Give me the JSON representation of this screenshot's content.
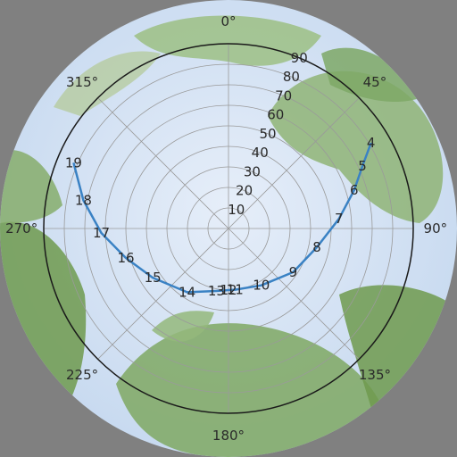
{
  "colors": {
    "background": "#808080",
    "sky": "#cfe0f5",
    "foliage_light": "#a9c88f",
    "foliage_dark": "#6f9a4e",
    "grid": "#9a9a9a",
    "horizon_ring": "#1a1a1a",
    "sun_path": "#3a82c4",
    "label_text": "#2a2a2a"
  },
  "chart_data": {
    "type": "polar-sunpath",
    "background_image": "hemispherical fisheye photo of tree canopy",
    "azimuth_labels": [
      {
        "azimuth": 0,
        "text": "0°"
      },
      {
        "azimuth": 45,
        "text": "45°"
      },
      {
        "azimuth": 90,
        "text": "90°"
      },
      {
        "azimuth": 135,
        "text": "135°"
      },
      {
        "azimuth": 180,
        "text": "180°"
      },
      {
        "azimuth": 225,
        "text": "225°"
      },
      {
        "azimuth": 270,
        "text": "270°"
      },
      {
        "azimuth": 315,
        "text": "315°"
      }
    ],
    "altitude_rings": [
      10,
      20,
      30,
      40,
      50,
      60,
      70,
      80,
      90
    ],
    "altitude_labels": [
      {
        "value": 10,
        "text": "10"
      },
      {
        "value": 20,
        "text": "20"
      },
      {
        "value": 30,
        "text": "30"
      },
      {
        "value": 40,
        "text": "40"
      },
      {
        "value": 50,
        "text": "50"
      },
      {
        "value": 60,
        "text": "60"
      },
      {
        "value": 70,
        "text": "70"
      },
      {
        "value": 80,
        "text": "80"
      },
      {
        "value": 90,
        "text": "90"
      }
    ],
    "grid": true,
    "sun_path": {
      "hours": [
        {
          "hour": "4",
          "azimuth": 59,
          "zenith": 81
        },
        {
          "hour": "5",
          "azimuth": 65,
          "zenith": 72
        },
        {
          "hour": "6",
          "azimuth": 73,
          "zenith": 64
        },
        {
          "hour": "7",
          "azimuth": 85,
          "zenith": 54
        },
        {
          "hour": "8",
          "azimuth": 102,
          "zenith": 44
        },
        {
          "hour": "9",
          "azimuth": 124,
          "zenith": 38
        },
        {
          "hour": "10",
          "azimuth": 150,
          "zenith": 32
        },
        {
          "hour": "11",
          "azimuth": 174,
          "zenith": 30
        },
        {
          "hour": "12",
          "azimuth": 180,
          "zenith": 30
        },
        {
          "hour": "13",
          "azimuth": 191,
          "zenith": 31
        },
        {
          "hour": "14",
          "azimuth": 213,
          "zenith": 37
        },
        {
          "hour": "15",
          "azimuth": 237,
          "zenith": 44
        },
        {
          "hour": "16",
          "azimuth": 254,
          "zenith": 52
        },
        {
          "hour": "17",
          "azimuth": 268,
          "zenith": 62
        },
        {
          "hour": "18",
          "azimuth": 281,
          "zenith": 72
        },
        {
          "hour": "19",
          "azimuth": 293,
          "zenith": 82
        }
      ]
    }
  }
}
